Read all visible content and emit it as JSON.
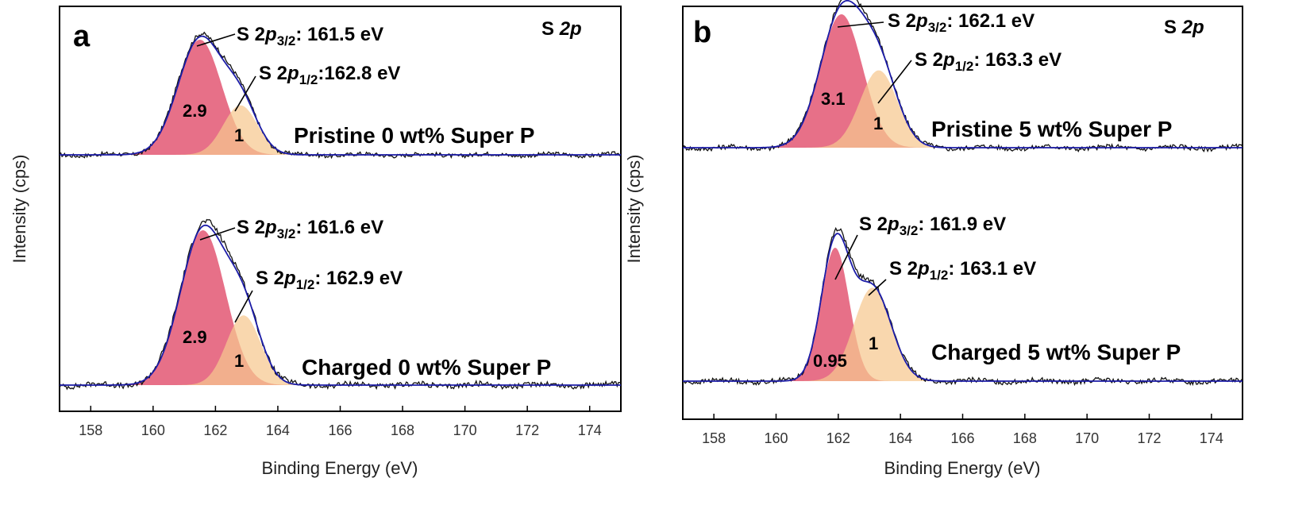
{
  "colors": {
    "s2p32_fill": "#e2506e",
    "s2p12_fill": "#f6c88f",
    "envelope": "#1c1ca8",
    "raw": "#111111",
    "frame": "#000000"
  },
  "chart_data": [
    {
      "type": "line",
      "panel": "a",
      "corner_label": "S 2p",
      "xlabel": "Binding Energy (eV)",
      "ylabel": "Intensity (cps)",
      "xlim": [
        157,
        175
      ],
      "xticks": [
        "158",
        "160",
        "162",
        "164",
        "166",
        "168",
        "170",
        "172",
        "174"
      ],
      "series": [
        {
          "name": "Pristine 0 wt% Super P",
          "peaks": [
            {
              "label": "S 2p3/2",
              "center": 161.5,
              "value": "161.5 eV",
              "area_ratio": "2.9",
              "sigma": 0.7,
              "amplitude": 1.0
            },
            {
              "label": "S 2p1/2",
              "center": 162.8,
              "value": "162.8 eV",
              "area_ratio": "1",
              "sigma": 0.55,
              "amplitude": 0.43
            }
          ]
        },
        {
          "name": "Charged 0 wt% Super P",
          "peaks": [
            {
              "label": "S 2p3/2",
              "center": 161.6,
              "value": "161.6 eV",
              "area_ratio": "2.9",
              "sigma": 0.72,
              "amplitude": 1.0
            },
            {
              "label": "S 2p1/2",
              "center": 162.9,
              "value": "162.9 eV",
              "area_ratio": "1",
              "sigma": 0.55,
              "amplitude": 0.45
            }
          ]
        }
      ]
    },
    {
      "type": "line",
      "panel": "b",
      "corner_label": "S 2p",
      "xlabel": "Binding Energy (eV)",
      "ylabel": "Intensity (cps)",
      "xlim": [
        157,
        175
      ],
      "xticks": [
        "158",
        "160",
        "162",
        "164",
        "166",
        "168",
        "170",
        "172",
        "174"
      ],
      "series": [
        {
          "name": "Pristine 5 wt% Super P",
          "peaks": [
            {
              "label": "S 2p3/2",
              "center": 162.1,
              "value": "162.1 eV",
              "area_ratio": "3.1",
              "sigma": 0.68,
              "amplitude": 1.0
            },
            {
              "label": "S 2p1/2",
              "center": 163.3,
              "value": "163.3 eV",
              "area_ratio": "1",
              "sigma": 0.6,
              "amplitude": 0.58
            }
          ]
        },
        {
          "name": "Charged 5 wt% Super P",
          "peaks": [
            {
              "label": "S 2p3/2",
              "center": 161.9,
              "value": "161.9 eV",
              "area_ratio": "0.95",
              "sigma": 0.45,
              "amplitude": 1.0
            },
            {
              "label": "S 2p1/2",
              "center": 163.1,
              "value": "163.1 eV",
              "area_ratio": "1",
              "sigma": 0.6,
              "amplitude": 0.7
            }
          ]
        }
      ]
    }
  ]
}
